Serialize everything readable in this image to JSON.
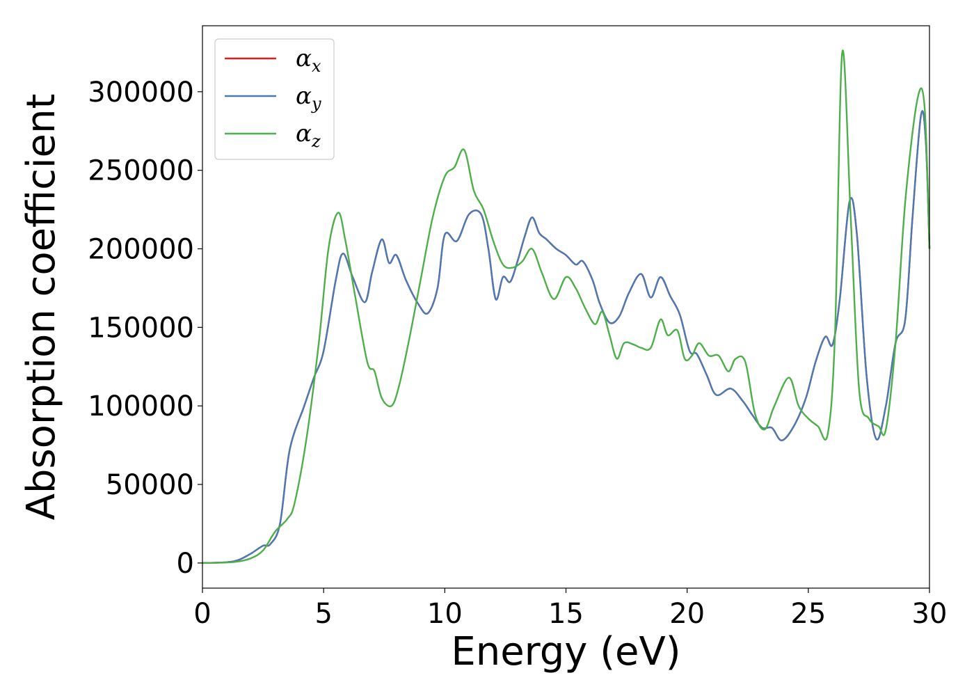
{
  "chart_data": {
    "type": "line",
    "xlabel": "Energy (eV)",
    "ylabel": "Absorption coefficient",
    "xlim": [
      0,
      30
    ],
    "ylim": [
      -16000,
      342000
    ],
    "x_ticks": [
      0,
      5,
      10,
      15,
      20,
      25,
      30
    ],
    "y_ticks": [
      0,
      50000,
      100000,
      150000,
      200000,
      250000,
      300000
    ],
    "grid": false,
    "legend_position": "top-left",
    "series": [
      {
        "name": "α_x",
        "legend_symbol": "α",
        "legend_sub": "x",
        "color": "#e41a1c",
        "x": [
          0,
          1,
          1.5,
          2,
          2.5,
          2.8,
          3.2,
          3.6,
          4.2,
          4.6,
          5.0,
          5.5,
          5.8,
          6.2,
          6.7,
          7.0,
          7.4,
          7.7,
          8.0,
          8.4,
          8.9,
          9.3,
          9.7,
          10.0,
          10.5,
          11.0,
          11.5,
          11.8,
          12.1,
          12.4,
          12.7,
          13.0,
          13.3,
          13.6,
          13.9,
          14.2,
          14.6,
          15.0,
          15.4,
          15.7,
          16.1,
          16.4,
          16.8,
          17.2,
          17.6,
          18.1,
          18.5,
          18.9,
          19.3,
          19.7,
          20.1,
          20.4,
          20.8,
          21.2,
          21.8,
          22.3,
          22.7,
          23.1,
          23.5,
          23.9,
          24.4,
          24.9,
          25.3,
          25.7,
          26.0,
          26.3,
          26.7,
          27.0,
          27.4,
          27.8,
          28.2,
          28.6,
          29.0,
          29.3,
          29.65,
          29.85,
          30.0
        ],
        "y": [
          0,
          500,
          2000,
          6000,
          11000,
          12000,
          25000,
          72000,
          100000,
          118000,
          135000,
          180000,
          197000,
          182000,
          166000,
          185000,
          206000,
          191000,
          196000,
          180000,
          165000,
          159000,
          175000,
          209000,
          205000,
          222000,
          222000,
          200000,
          168000,
          182000,
          179000,
          192000,
          208000,
          220000,
          210000,
          206000,
          200000,
          196000,
          190000,
          192000,
          180000,
          165000,
          153000,
          157000,
          172000,
          184000,
          169000,
          182000,
          170000,
          158000,
          135000,
          133000,
          120000,
          107000,
          111000,
          103000,
          94000,
          86000,
          86000,
          78000,
          87000,
          105000,
          128000,
          144000,
          139000,
          168000,
          230000,
          210000,
          120000,
          79000,
          100000,
          140000,
          155000,
          220000,
          285000,
          268000,
          200000
        ]
      },
      {
        "name": "α_y",
        "legend_symbol": "α",
        "legend_sub": "y",
        "color": "#4a7ab5",
        "x": [
          0,
          1,
          1.5,
          2,
          2.5,
          2.8,
          3.2,
          3.6,
          4.2,
          4.6,
          5.0,
          5.5,
          5.8,
          6.2,
          6.7,
          7.0,
          7.4,
          7.7,
          8.0,
          8.4,
          8.9,
          9.3,
          9.7,
          10.0,
          10.5,
          11.0,
          11.5,
          11.8,
          12.1,
          12.4,
          12.7,
          13.0,
          13.3,
          13.6,
          13.9,
          14.2,
          14.6,
          15.0,
          15.4,
          15.7,
          16.1,
          16.4,
          16.8,
          17.2,
          17.6,
          18.1,
          18.5,
          18.9,
          19.3,
          19.7,
          20.1,
          20.4,
          20.8,
          21.2,
          21.8,
          22.3,
          22.7,
          23.1,
          23.5,
          23.9,
          24.4,
          24.9,
          25.3,
          25.7,
          26.0,
          26.3,
          26.7,
          27.0,
          27.4,
          27.8,
          28.2,
          28.6,
          29.0,
          29.3,
          29.65,
          29.85,
          30.0
        ],
        "y": [
          0,
          500,
          2000,
          6000,
          11000,
          12000,
          25000,
          72000,
          100000,
          118000,
          135000,
          180000,
          197000,
          182000,
          166000,
          185000,
          206000,
          191000,
          196000,
          180000,
          165000,
          159000,
          175000,
          209000,
          205000,
          222000,
          222000,
          200000,
          168000,
          182000,
          179000,
          192000,
          208000,
          220000,
          210000,
          206000,
          200000,
          196000,
          190000,
          192000,
          180000,
          165000,
          153000,
          157000,
          172000,
          184000,
          169000,
          182000,
          170000,
          158000,
          135000,
          133000,
          120000,
          107000,
          111000,
          103000,
          94000,
          86000,
          86000,
          78000,
          87000,
          105000,
          128000,
          144000,
          139000,
          168000,
          230000,
          210000,
          120000,
          79000,
          100000,
          140000,
          155000,
          220000,
          285000,
          268000,
          200000
        ]
      },
      {
        "name": "α_z",
        "legend_symbol": "α",
        "legend_sub": "z",
        "color": "#4daf4a",
        "x": [
          0,
          1,
          1.5,
          2,
          2.5,
          3.0,
          3.5,
          3.8,
          4.3,
          4.8,
          5.2,
          5.6,
          5.9,
          6.3,
          6.8,
          7.1,
          7.4,
          7.8,
          8.1,
          8.5,
          9.0,
          9.5,
          10.0,
          10.4,
          10.8,
          11.2,
          11.6,
          12.0,
          12.4,
          12.8,
          13.2,
          13.6,
          14.0,
          14.5,
          15.0,
          15.4,
          15.8,
          16.2,
          16.5,
          16.8,
          17.1,
          17.4,
          17.8,
          18.1,
          18.5,
          18.9,
          19.2,
          19.6,
          19.9,
          20.2,
          20.5,
          20.9,
          21.3,
          21.7,
          22.0,
          22.4,
          22.8,
          23.2,
          23.6,
          24.2,
          24.6,
          25.0,
          25.4,
          25.8,
          26.1,
          26.4,
          26.75,
          27.1,
          27.5,
          27.9,
          28.2,
          28.6,
          29.0,
          29.5,
          29.8,
          30.0
        ],
        "y": [
          0,
          300,
          1000,
          3000,
          8000,
          20000,
          28000,
          38000,
          80000,
          140000,
          200000,
          223000,
          205000,
          170000,
          128000,
          122000,
          105000,
          100000,
          112000,
          140000,
          180000,
          220000,
          246000,
          252000,
          263000,
          237000,
          225000,
          205000,
          190000,
          188000,
          192000,
          200000,
          185000,
          168000,
          182000,
          175000,
          162000,
          152000,
          160000,
          145000,
          130000,
          140000,
          139000,
          137000,
          137000,
          155000,
          145000,
          148000,
          130000,
          132000,
          140000,
          132000,
          132000,
          122000,
          130000,
          128000,
          95000,
          85000,
          100000,
          118000,
          100000,
          92000,
          87000,
          82000,
          145000,
          325000,
          220000,
          110000,
          92000,
          87000,
          85000,
          140000,
          230000,
          295000,
          290000,
          200000
        ]
      }
    ]
  }
}
